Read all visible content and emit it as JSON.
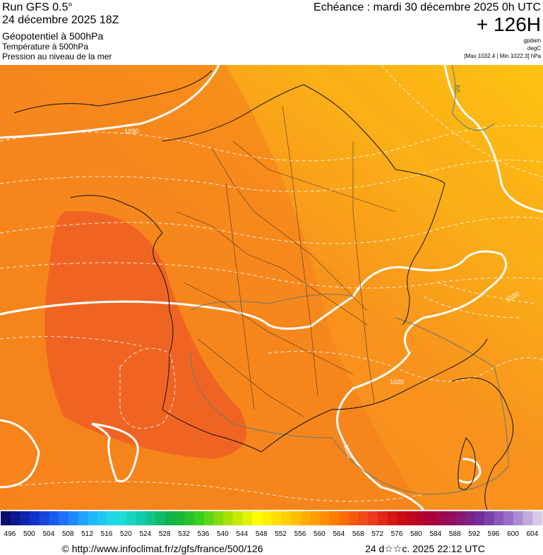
{
  "header": {
    "run": "Run GFS 0.5°",
    "run_date": "24 décembre 2025 18Z",
    "field1": "Géopotentiel à 500hPa",
    "field2": "Température à 500hPa",
    "field3": "Pression au niveau de la mer",
    "echeance": "Echéance : mardi 30 décembre 2025 0h UTC",
    "offset": "+ 126H",
    "unit1": "gpdam",
    "unit2": "degC",
    "pressure_range": "[Max 1032.4 | Min 1022.3] hPa"
  },
  "map": {
    "contour_labels": [
      "1030",
      "-24",
      "1020",
      "1020",
      "1020"
    ]
  },
  "legend": {
    "labels": [
      496,
      500,
      504,
      508,
      512,
      516,
      520,
      524,
      528,
      532,
      536,
      540,
      544,
      548,
      552,
      556,
      560,
      564,
      568,
      572,
      576,
      580,
      584,
      588,
      592,
      596,
      600,
      604
    ]
  },
  "footer": {
    "url": "© http://www.infoclimat.fr/z/gfs/france/500/126",
    "timestamp": "24 d☆☆c. 2025 22:12 UTC"
  }
}
